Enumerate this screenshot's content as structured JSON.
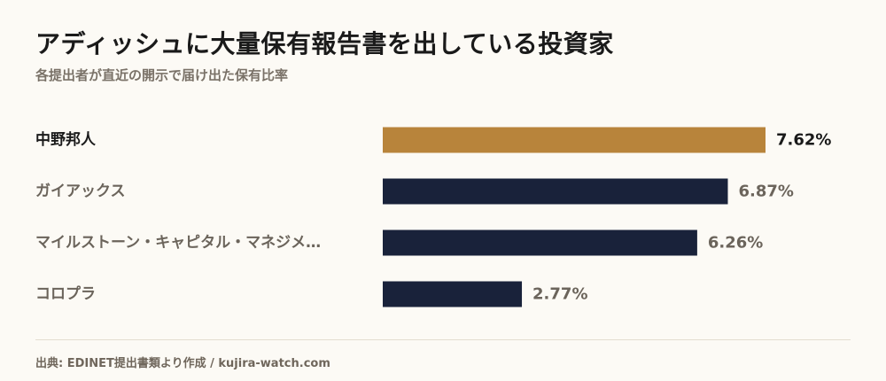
{
  "title": "アディッシュに大量保有報告書を出している投資家",
  "subtitle": "各提出者が直近の開示で届け出た保有比率",
  "source": "出典: EDINET提出書類より作成 / kujira-watch.com",
  "colors": {
    "highlight": "#b8843b",
    "bar": "#19223a",
    "label_highlight": "#1a1a1a",
    "label": "#6b645b",
    "value_highlight": "#1a1a1a",
    "value": "#6b645b"
  },
  "chart_data": {
    "type": "bar",
    "orientation": "horizontal",
    "categories": [
      "中野邦人",
      "ガイアックス",
      "マイルストーン・キャピタル・マネジメ…",
      "コロプラ"
    ],
    "values": [
      7.62,
      6.87,
      6.26,
      2.77
    ],
    "value_labels": [
      "7.62%",
      "6.87%",
      "6.26%",
      "2.77%"
    ],
    "highlight_index": 0,
    "unit": "%",
    "grid": false,
    "legend": "none"
  }
}
